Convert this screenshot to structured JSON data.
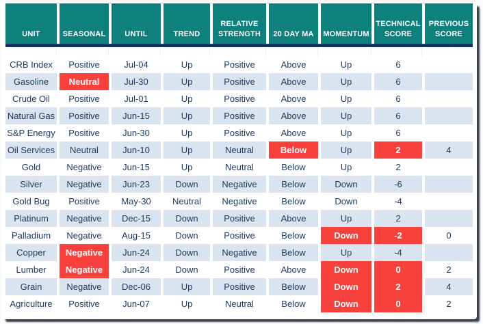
{
  "colors": {
    "header_bg": "#0E817D",
    "rule": "#17365D",
    "alt_row": "#DAE4F0",
    "highlight_red": "#F8413D",
    "text": "#1F3A60"
  },
  "chart_data": {
    "type": "table",
    "title": "",
    "legend_position": "none",
    "columns": [
      {
        "key": "unit",
        "label": "UNIT"
      },
      {
        "key": "seasonal",
        "label": "SEASONAL"
      },
      {
        "key": "until",
        "label": "UNTIL"
      },
      {
        "key": "trend",
        "label": "TREND"
      },
      {
        "key": "relative_strength",
        "label": "RELATIVE STRENGTH"
      },
      {
        "key": "ma20",
        "label": "20 DAY MA"
      },
      {
        "key": "momentum",
        "label": "MOMENTUM"
      },
      {
        "key": "technical_score",
        "label": "TECHNICAL SCORE"
      },
      {
        "key": "previous_score",
        "label": "PREVIOUS SCORE"
      }
    ],
    "rows": [
      {
        "unit": "CRB Index",
        "seasonal": "Positive",
        "until": "Jul-04",
        "trend": "Up",
        "relative_strength": "Positive",
        "ma20": "Above",
        "momentum": "Up",
        "technical_score": "6",
        "previous_score": "",
        "highlights": []
      },
      {
        "unit": "Gasoline",
        "seasonal": "Neutral",
        "until": "Jul-30",
        "trend": "Up",
        "relative_strength": "Positive",
        "ma20": "Above",
        "momentum": "Up",
        "technical_score": "6",
        "previous_score": "",
        "highlights": [
          "seasonal"
        ]
      },
      {
        "unit": "Crude Oil",
        "seasonal": "Positive",
        "until": "Jul-01",
        "trend": "Up",
        "relative_strength": "Positive",
        "ma20": "Above",
        "momentum": "Up",
        "technical_score": "6",
        "previous_score": "",
        "highlights": []
      },
      {
        "unit": "Natural Gas",
        "seasonal": "Positive",
        "until": "Jun-15",
        "trend": "Up",
        "relative_strength": "Positive",
        "ma20": "Above",
        "momentum": "Up",
        "technical_score": "6",
        "previous_score": "",
        "highlights": []
      },
      {
        "unit": "S&P Energy",
        "seasonal": "Positive",
        "until": "Jun-30",
        "trend": "Up",
        "relative_strength": "Positive",
        "ma20": "Above",
        "momentum": "Up",
        "technical_score": "6",
        "previous_score": "",
        "highlights": []
      },
      {
        "unit": "Oil Services",
        "seasonal": "Neutral",
        "until": "Jun-10",
        "trend": "Up",
        "relative_strength": "Neutral",
        "ma20": "Below",
        "momentum": "Up",
        "technical_score": "2",
        "previous_score": "4",
        "highlights": [
          "ma20",
          "technical_score"
        ]
      },
      {
        "unit": "Gold",
        "seasonal": "Negative",
        "until": "Jun-15",
        "trend": "Up",
        "relative_strength": "Neutral",
        "ma20": "Below",
        "momentum": "Up",
        "technical_score": "2",
        "previous_score": "",
        "highlights": []
      },
      {
        "unit": "Silver",
        "seasonal": "Negative",
        "until": "Jun-23",
        "trend": "Down",
        "relative_strength": "Negative",
        "ma20": "Below",
        "momentum": "Down",
        "technical_score": "-6",
        "previous_score": "",
        "highlights": []
      },
      {
        "unit": "Gold Bug",
        "seasonal": "Positive",
        "until": "May-30",
        "trend": "Neutral",
        "relative_strength": "Negative",
        "ma20": "Below",
        "momentum": "Down",
        "technical_score": "-4",
        "previous_score": "",
        "highlights": []
      },
      {
        "unit": "Platinum",
        "seasonal": "Negative",
        "until": "Dec-15",
        "trend": "Down",
        "relative_strength": "Positive",
        "ma20": "Above",
        "momentum": "Up",
        "technical_score": "2",
        "previous_score": "",
        "highlights": []
      },
      {
        "unit": "Palladium",
        "seasonal": "Negative",
        "until": "Aug-15",
        "trend": "Down",
        "relative_strength": "Positive",
        "ma20": "Below",
        "momentum": "Down",
        "technical_score": "-2",
        "previous_score": "0",
        "highlights": [
          "momentum",
          "technical_score"
        ]
      },
      {
        "unit": "Copper",
        "seasonal": "Negative",
        "until": "Jun-24",
        "trend": "Down",
        "relative_strength": "Negative",
        "ma20": "Below",
        "momentum": "Up",
        "technical_score": "-4",
        "previous_score": "",
        "highlights": [
          "seasonal"
        ]
      },
      {
        "unit": "Lumber",
        "seasonal": "Negative",
        "until": "Jun-24",
        "trend": "Down",
        "relative_strength": "Positive",
        "ma20": "Above",
        "momentum": "Down",
        "technical_score": "0",
        "previous_score": "2",
        "highlights": [
          "seasonal",
          "momentum",
          "technical_score"
        ]
      },
      {
        "unit": "Grain",
        "seasonal": "Negative",
        "until": "Dec-06",
        "trend": "Up",
        "relative_strength": "Positive",
        "ma20": "Below",
        "momentum": "Down",
        "technical_score": "2",
        "previous_score": "4",
        "highlights": [
          "momentum",
          "technical_score"
        ]
      },
      {
        "unit": "Agriculture",
        "seasonal": "Positive",
        "until": "Jun-07",
        "trend": "Up",
        "relative_strength": "Neutral",
        "ma20": "Below",
        "momentum": "Down",
        "technical_score": "0",
        "previous_score": "2",
        "highlights": [
          "momentum",
          "technical_score"
        ]
      }
    ]
  }
}
